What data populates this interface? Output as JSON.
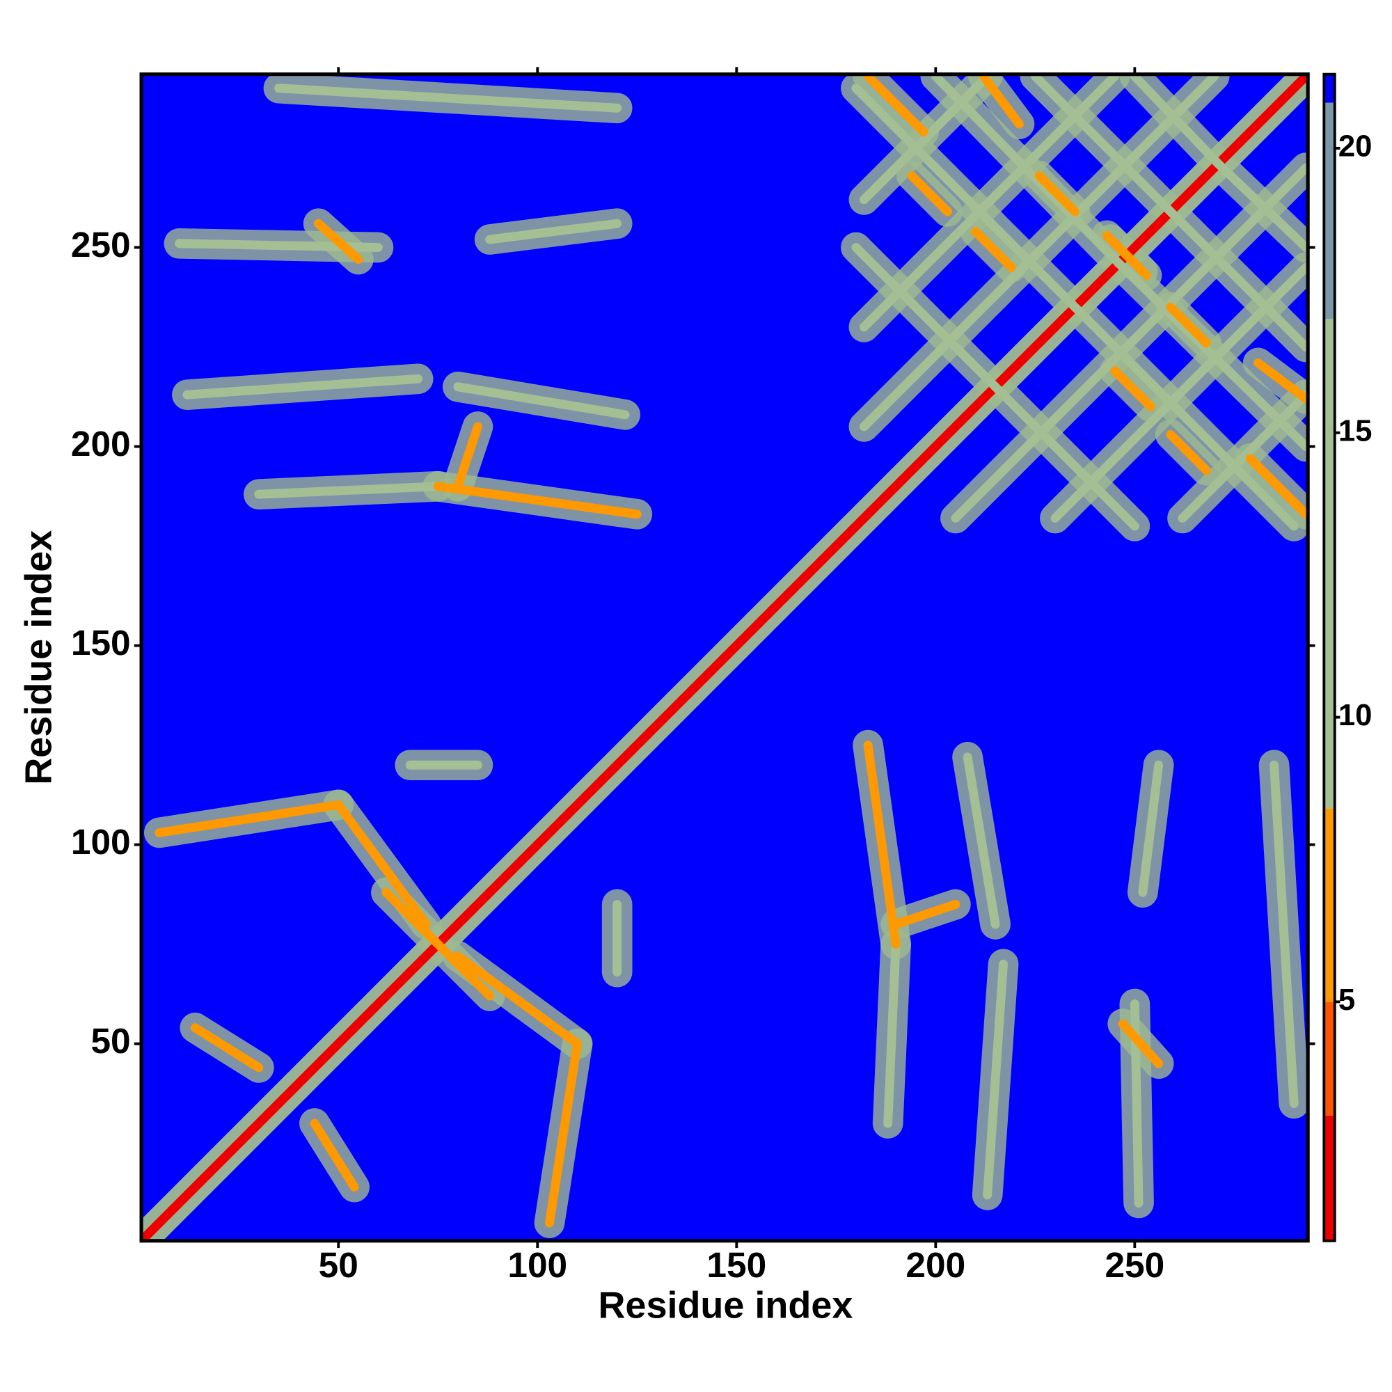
{
  "chart_data": {
    "type": "contact-map",
    "x_label": "Residue index",
    "y_label": "Residue index",
    "xlim": [
      0.5,
      293.5
    ],
    "ylim": [
      0.5,
      293.5
    ],
    "xticks": [
      50,
      100,
      150,
      200,
      250
    ],
    "yticks": [
      50,
      100,
      150,
      200,
      250
    ],
    "symmetric": true,
    "contacts": [
      {
        "x": [
          1,
          293
        ],
        "y": [
          1,
          293
        ],
        "value": 2
      },
      {
        "x": [
          62,
          75
        ],
        "y": [
          88,
          75
        ],
        "value": 6
      },
      {
        "x": [
          14,
          30
        ],
        "y": [
          54,
          44
        ],
        "value": 8
      },
      {
        "x": [
          5,
          50
        ],
        "y": [
          103,
          110
        ],
        "value": 7
      },
      {
        "x": [
          50,
          72
        ],
        "y": [
          110,
          80
        ],
        "value": 6
      },
      {
        "x": [
          68,
          85
        ],
        "y": [
          120,
          120
        ],
        "value": 12
      },
      {
        "x": [
          30,
          75
        ],
        "y": [
          188,
          190
        ],
        "value": 9
      },
      {
        "x": [
          75,
          125
        ],
        "y": [
          190,
          183
        ],
        "value": 8
      },
      {
        "x": [
          80,
          85
        ],
        "y": [
          190,
          205
        ],
        "value": 8
      },
      {
        "x": [
          12,
          70
        ],
        "y": [
          213,
          217
        ],
        "value": 9
      },
      {
        "x": [
          80,
          122
        ],
        "y": [
          215,
          208
        ],
        "value": 9
      },
      {
        "x": [
          10,
          60
        ],
        "y": [
          251,
          250
        ],
        "value": 9
      },
      {
        "x": [
          45,
          55
        ],
        "y": [
          256,
          247
        ],
        "value": 6
      },
      {
        "x": [
          88,
          120
        ],
        "y": [
          252,
          256
        ],
        "value": 10
      },
      {
        "x": [
          35,
          120
        ],
        "y": [
          290,
          285
        ],
        "value": 11
      },
      {
        "x": [
          180,
          215
        ],
        "y": [
          250,
          215
        ],
        "value": 12
      },
      {
        "x": [
          180,
          235
        ],
        "y": [
          290,
          235
        ],
        "value": 12
      },
      {
        "x": [
          200,
          246
        ],
        "y": [
          293,
          246
        ],
        "value": 12
      },
      {
        "x": [
          225,
          259
        ],
        "y": [
          293,
          259
        ],
        "value": 12
      },
      {
        "x": [
          250,
          271
        ],
        "y": [
          293,
          271
        ],
        "value": 12
      },
      {
        "x": [
          182,
          270
        ],
        "y": [
          205,
          293
        ],
        "value": 12
      },
      {
        "x": [
          182,
          245
        ],
        "y": [
          230,
          293
        ],
        "value": 12
      },
      {
        "x": [
          182,
          213
        ],
        "y": [
          262,
          293
        ],
        "value": 12
      },
      {
        "x": [
          183,
          197
        ],
        "y": [
          293,
          279
        ],
        "value": 6
      },
      {
        "x": [
          212,
          221
        ],
        "y": [
          293,
          281
        ],
        "value": 6
      },
      {
        "x": [
          226,
          235
        ],
        "y": [
          268,
          259
        ],
        "value": 6
      },
      {
        "x": [
          244,
          253
        ],
        "y": [
          252,
          243
        ],
        "value": 6
      },
      {
        "x": [
          210,
          219
        ],
        "y": [
          254,
          245
        ],
        "value": 6
      },
      {
        "x": [
          194,
          203
        ],
        "y": [
          268,
          259
        ],
        "value": 8
      }
    ],
    "colorbar": {
      "lim": [
        0.8,
        21.3
      ],
      "ticks": [
        5,
        10,
        15,
        20
      ],
      "bands": [
        {
          "from": 0.8,
          "to": 3,
          "color": "#ee0000"
        },
        {
          "from": 3,
          "to": 5,
          "color": "#ff5500"
        },
        {
          "from": 5,
          "to": 8.4,
          "color": "#ff9900"
        },
        {
          "from": 8.4,
          "to": 17,
          "color": "#a5bf95"
        },
        {
          "from": 17,
          "to": 20.8,
          "color": "#7a98a8"
        },
        {
          "from": 20.8,
          "to": 21.3,
          "color": "#0000ff"
        }
      ]
    }
  }
}
